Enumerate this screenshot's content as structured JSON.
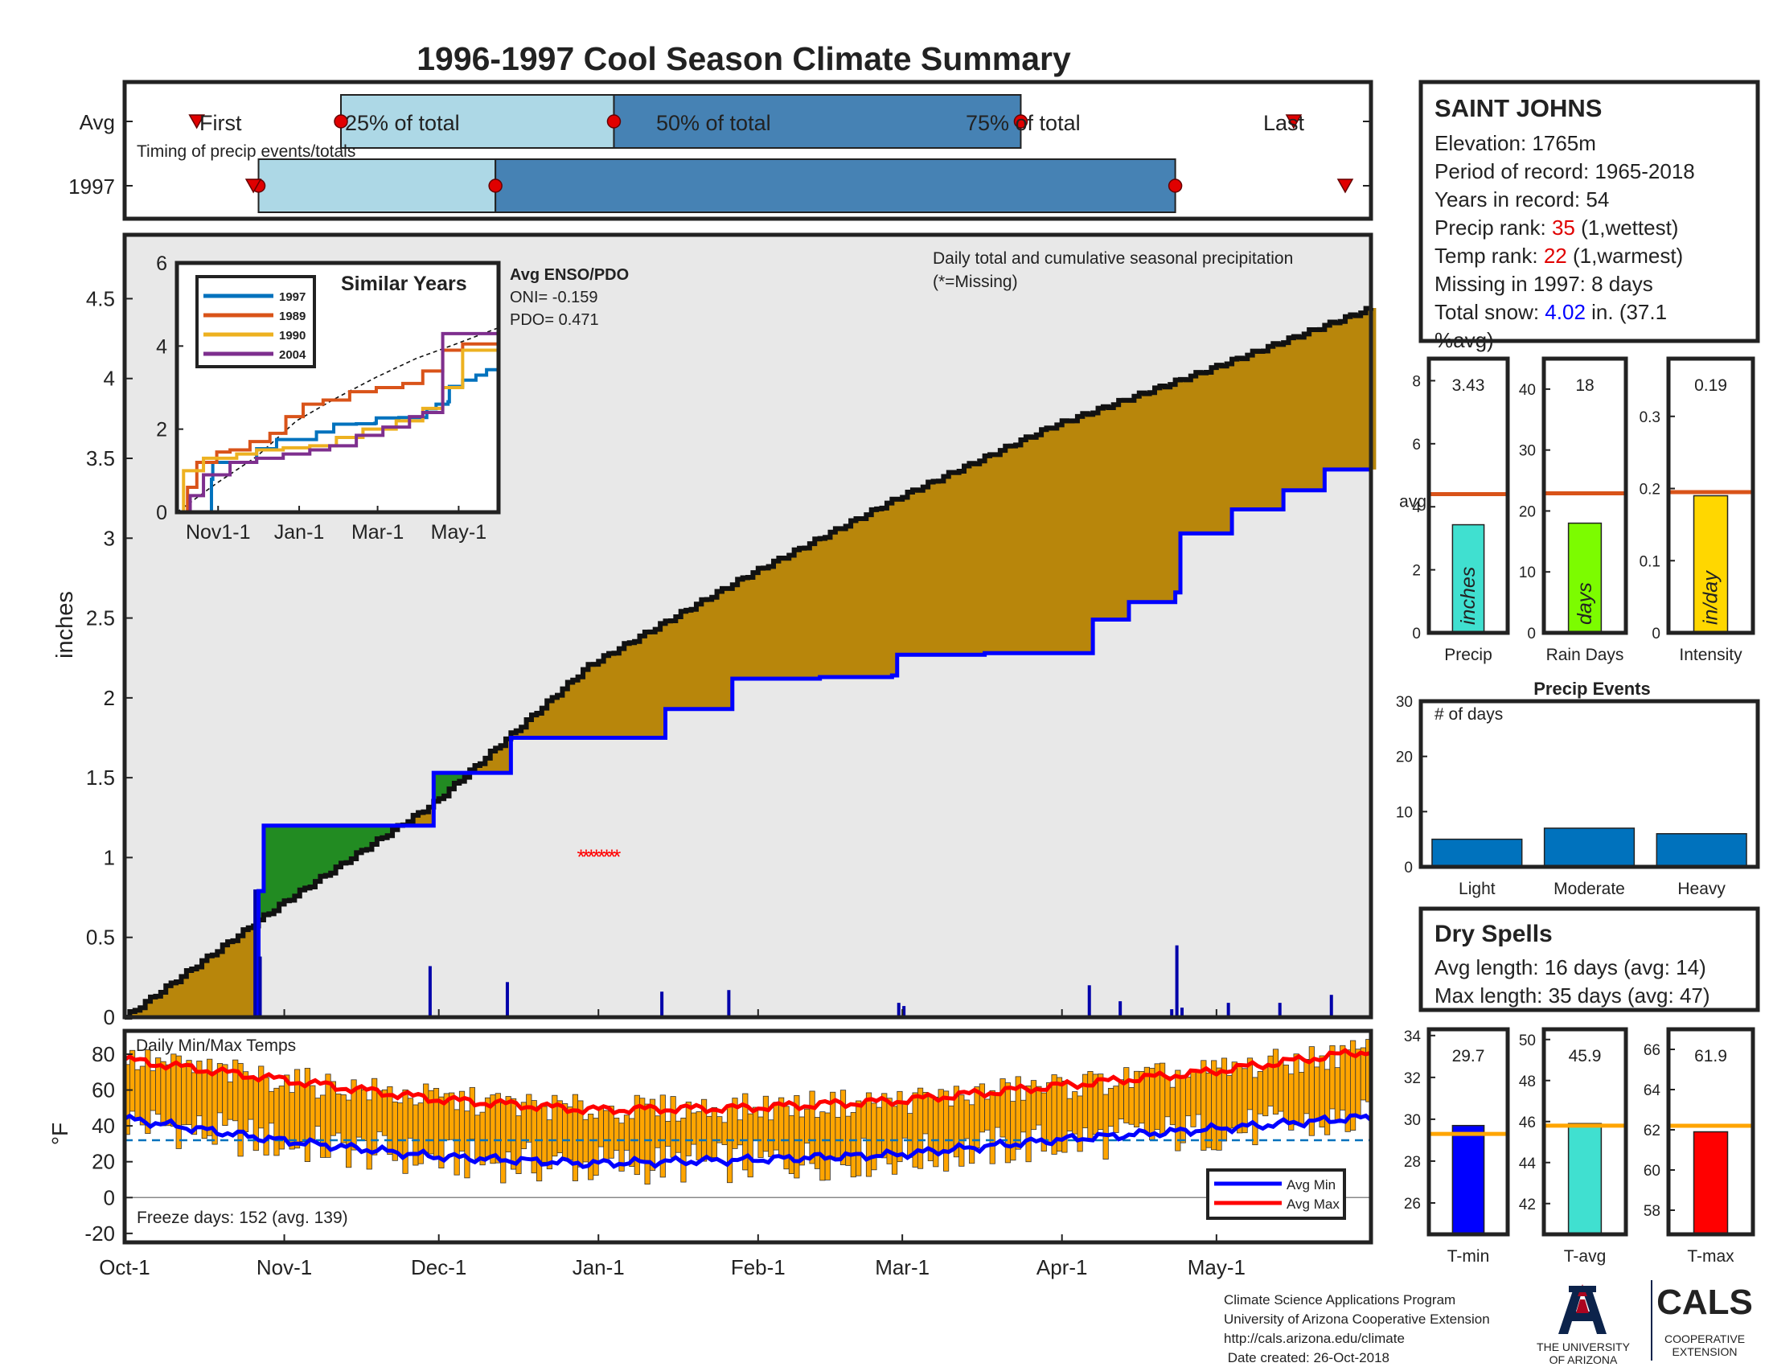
{
  "title": "1996-1997 Cool Season Climate Summary",
  "timing": {
    "caption": "Timing of precip events/totals",
    "row_labels": [
      "Avg",
      "1997"
    ],
    "avg_labels": {
      "first": "First",
      "p25": "25% of total",
      "p50": "50% of total",
      "p75": "75% of total",
      "last": "Last"
    },
    "avg_dates": {
      "first": "1996-10-15",
      "p25": "1996-11-12",
      "p50": "1997-01-04",
      "p75": "1997-03-24",
      "last": "1997-05-16"
    },
    "y1997_dates": {
      "first": "1996-10-26",
      "p25": "1996-10-27",
      "p50": "1996-12-12",
      "p75": "1997-04-23",
      "last": "1997-05-26"
    },
    "colors": {
      "early": "#add8e6",
      "late": "#4682b4",
      "dot": "#e00000"
    }
  },
  "station": {
    "name": "SAINT JOHNS",
    "elevation": "Elevation: 1765m",
    "period": "Period of record: 1965-2018",
    "years": "Years in record: 54",
    "precip_rank_label": "Precip rank: ",
    "precip_rank_value": "35",
    "precip_rank_suffix": " (1,wettest)",
    "temp_rank_label": "Temp rank: ",
    "temp_rank_value": "22",
    "temp_rank_suffix": " (1,warmest)",
    "missing": "Missing in 1997: 8 days",
    "snow_label": "Total snow: ",
    "snow_value": "4.02",
    "snow_suffix": " in. (37.1",
    "snow_line2": "%avg)"
  },
  "labels": {
    "daily_title": "Daily total and cumulative seasonal precipitation",
    "missing_note": "(*=Missing)",
    "ylabel_precip": "inches",
    "ylabel_temp": "°F",
    "temps_title": "Daily Min/Max Temps",
    "freeze": "Freeze days: 152 (avg. 139)",
    "legend_min": "Avg Min",
    "legend_max": "Avg Max",
    "enso_title": "Avg ENSO/PDO",
    "oni": "ONI= -0.159",
    "pdo": "PDO= 0.471",
    "similar_title": "Similar Years",
    "precip_events_title": "Precip Events",
    "num_days": "# of days"
  },
  "dry_spells": {
    "title": "Dry Spells",
    "avg": "Avg length: 16 days (avg: 14)",
    "max": "Max length: 35 days (avg: 47)"
  },
  "footer": {
    "lines": [
      "Climate Science Applications Program",
      "University of Arizona Cooperative Extension",
      "http://cals.arizona.edu/climate",
      " Date created: 26-Oct-2018"
    ],
    "ua_line1": "THE UNIVERSITY",
    "ua_line2": "OF ARIZONA",
    "cals": "CALS",
    "coop1": "COOPERATIVE",
    "coop2": "EXTENSION"
  },
  "chart_data": [
    {
      "type": "area",
      "name": "cumulative-precip",
      "x_start": "1996-10-01",
      "x_end": "1997-05-31",
      "x_ticks": [
        "Oct-1",
        "Nov-1",
        "Dec-1",
        "Jan-1",
        "Feb-1",
        "Mar-1",
        "Apr-1",
        "May-1"
      ],
      "x_tick_days": [
        0,
        31,
        61,
        92,
        123,
        151,
        182,
        212
      ],
      "ylim": [
        0,
        4.9
      ],
      "yticks": [
        0,
        0.5,
        1,
        1.5,
        2,
        2.5,
        3,
        3.5,
        4,
        4.5
      ],
      "avg_cumulative": {
        "day": [
          0,
          30,
          60,
          90,
          120,
          150,
          180,
          210,
          242
        ],
        "inches": [
          0,
          0.7,
          1.34,
          2.2,
          2.75,
          3.25,
          3.7,
          4.05,
          4.44
        ]
      },
      "y1997_cumulative": {
        "day": [
          0,
          25,
          26,
          27,
          59,
          60,
          74,
          75,
          104,
          105,
          117,
          118,
          134,
          135,
          149,
          150,
          166,
          167,
          187,
          188,
          194,
          195,
          203,
          204,
          205,
          214,
          215,
          224,
          225,
          232,
          233,
          242
        ],
        "inches": [
          0,
          0,
          0.79,
          1.2,
          1.2,
          1.53,
          1.53,
          1.75,
          1.75,
          1.93,
          1.93,
          2.12,
          2.12,
          2.13,
          2.14,
          2.27,
          2.27,
          2.28,
          2.28,
          2.49,
          2.49,
          2.6,
          2.6,
          2.66,
          3.03,
          3.03,
          3.18,
          3.18,
          3.3,
          3.3,
          3.43,
          3.43
        ]
      },
      "daily_precip": {
        "day": [
          25,
          26,
          59,
          74,
          104,
          117,
          150,
          151,
          187,
          193,
          203,
          204,
          205,
          214,
          224,
          234
        ],
        "inches": [
          0.8,
          0.38,
          0.32,
          0.22,
          0.16,
          0.17,
          0.09,
          0.07,
          0.2,
          0.1,
          0.05,
          0.45,
          0.06,
          0.09,
          0.09,
          0.14
        ]
      },
      "missing_days": [
        90,
        91,
        92,
        93,
        94,
        95,
        96,
        97
      ],
      "missing_y": 1.0,
      "colors": {
        "above": "#228b22",
        "below": "#b8860b",
        "line_1997": "#0000ff",
        "fill": "#e8e8e8",
        "avg_line": "#111111",
        "missing": "#ff0000"
      }
    },
    {
      "type": "line",
      "name": "similar-years",
      "xlim": [
        0,
        242
      ],
      "x_ticks": [
        "Nov1-1",
        "Jan-1",
        "Mar-1",
        "May-1"
      ],
      "x_tick_days": [
        31,
        92,
        151,
        212
      ],
      "ylim": [
        0,
        6
      ],
      "yticks": [
        0,
        2,
        4,
        6
      ],
      "series": [
        {
          "name": "1997",
          "color": "#0072bd",
          "day": [
            0,
            25,
            26,
            27,
            59,
            60,
            74,
            75,
            104,
            105,
            117,
            118,
            134,
            135,
            149,
            150,
            166,
            167,
            187,
            188,
            194,
            195,
            203,
            204,
            205,
            214,
            215,
            224,
            225,
            232,
            233,
            242
          ],
          "inches": [
            0,
            0,
            0.79,
            1.2,
            1.2,
            1.53,
            1.53,
            1.75,
            1.75,
            1.93,
            1.93,
            2.12,
            2.12,
            2.13,
            2.14,
            2.27,
            2.27,
            2.28,
            2.28,
            2.49,
            2.49,
            2.6,
            2.6,
            2.66,
            3.03,
            3.03,
            3.18,
            3.18,
            3.3,
            3.3,
            3.43,
            3.43
          ]
        },
        {
          "name": "1989",
          "color": "#d95319",
          "day": [
            0,
            8,
            15,
            30,
            40,
            55,
            70,
            82,
            95,
            110,
            130,
            150,
            170,
            185,
            200,
            215,
            242
          ],
          "inches": [
            0,
            0.6,
            1.2,
            1.45,
            1.5,
            1.7,
            1.9,
            2.3,
            2.6,
            2.7,
            2.9,
            3.0,
            3.1,
            3.4,
            3.9,
            4.05,
            4.1
          ]
        },
        {
          "name": "1990",
          "color": "#edb120",
          "day": [
            0,
            5,
            20,
            45,
            60,
            80,
            100,
            120,
            140,
            165,
            185,
            200,
            215,
            242
          ],
          "inches": [
            0,
            1.0,
            1.3,
            1.4,
            1.5,
            1.55,
            1.6,
            1.8,
            2.0,
            2.2,
            2.5,
            3.0,
            3.9,
            4.0
          ]
        },
        {
          "name": "2004",
          "color": "#7e2f8e",
          "day": [
            0,
            10,
            20,
            40,
            60,
            80,
            100,
            115,
            135,
            155,
            175,
            185,
            200,
            242
          ],
          "inches": [
            0,
            0.4,
            0.9,
            1.2,
            1.3,
            1.4,
            1.5,
            1.6,
            1.85,
            2.05,
            2.3,
            2.4,
            4.3,
            4.3
          ]
        }
      ],
      "avg_line": {
        "day": [
          0,
          30,
          60,
          90,
          120,
          150,
          180,
          210,
          242
        ],
        "inches": [
          0,
          0.7,
          1.34,
          2.2,
          2.75,
          3.25,
          3.7,
          4.05,
          4.44
        ]
      }
    },
    {
      "type": "bar",
      "name": "precip-summary",
      "panels": [
        {
          "category": "Precip",
          "value": 3.43,
          "label": "3.43",
          "avg": 4.4,
          "ylim": [
            0,
            8.7
          ],
          "yticks": [
            0,
            2,
            4,
            6,
            8
          ],
          "color": "#40e0d0",
          "unit": "inches",
          "avg_label": "avg"
        },
        {
          "category": "Rain Days",
          "value": 18,
          "label": "18",
          "avg": 22.9,
          "ylim": [
            0,
            45
          ],
          "yticks": [
            0,
            10,
            20,
            30,
            40
          ],
          "color": "#7cfc00",
          "unit": "days"
        },
        {
          "category": "Intensity",
          "value": 0.19,
          "label": "0.19",
          "avg": 0.195,
          "ylim": [
            0,
            0.38
          ],
          "yticks": [
            0,
            0.1,
            0.2,
            0.3
          ],
          "color": "#ffd700",
          "unit": "in/day"
        }
      ],
      "avg_color": "#d95319"
    },
    {
      "type": "bar",
      "name": "precip-events",
      "categories": [
        "Light",
        "Moderate",
        "Heavy"
      ],
      "values": [
        5,
        7,
        6
      ],
      "ylim": [
        0,
        30
      ],
      "yticks": [
        0,
        10,
        20,
        30
      ],
      "color": "#0072bd"
    },
    {
      "type": "bar",
      "name": "daily-temps",
      "x_start": "1996-10-01",
      "ylim": [
        -25,
        93
      ],
      "yticks": [
        -20,
        0,
        20,
        40,
        60,
        80
      ],
      "freeze_line": 32,
      "avg_min": {
        "day": [
          0,
          30,
          60,
          90,
          120,
          150,
          180,
          210,
          242
        ],
        "temp": [
          44,
          32,
          23,
          19,
          21,
          24,
          32,
          38,
          45
        ]
      },
      "avg_max": {
        "day": [
          0,
          30,
          60,
          90,
          120,
          150,
          180,
          210,
          242
        ],
        "temp": [
          77,
          66,
          55,
          49,
          50,
          54,
          62,
          70,
          82
        ]
      },
      "colors": {
        "bar": "#ffa500",
        "min": "#0000ff",
        "max": "#ff0000",
        "freeze": "#0072bd"
      }
    },
    {
      "type": "bar",
      "name": "temp-summary",
      "panels": [
        {
          "category": "T-min",
          "value": 29.7,
          "label": "29.7",
          "avg": 29.3,
          "ylim": [
            24.5,
            34.3
          ],
          "yticks": [
            26,
            28,
            30,
            32,
            34
          ],
          "color": "#0000ff"
        },
        {
          "category": "T-avg",
          "value": 45.9,
          "label": "45.9",
          "avg": 45.8,
          "ylim": [
            40.5,
            50.5
          ],
          "yticks": [
            42,
            44,
            46,
            48,
            50
          ],
          "color": "#40e0d0"
        },
        {
          "category": "T-max",
          "value": 61.9,
          "label": "61.9",
          "avg": 62.2,
          "ylim": [
            56.8,
            67
          ],
          "yticks": [
            58,
            60,
            62,
            64,
            66
          ],
          "color": "#ff0000"
        }
      ],
      "avg_color": "#ffa500"
    }
  ]
}
